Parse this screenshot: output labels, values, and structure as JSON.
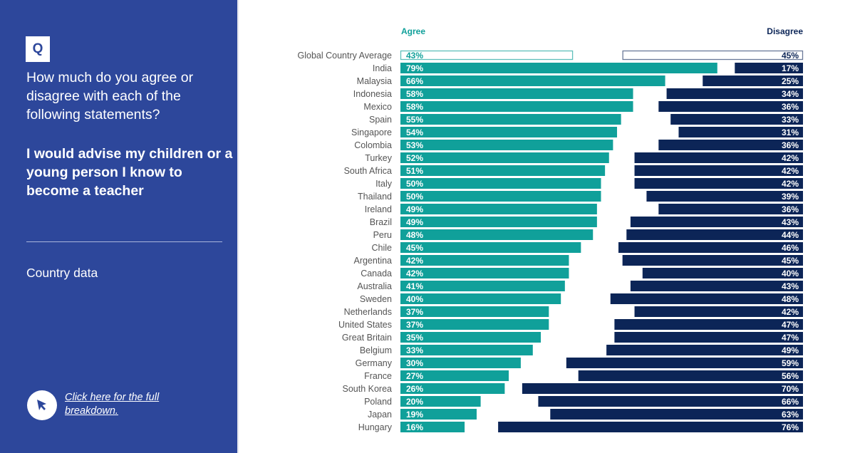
{
  "sidebar": {
    "badge": "Q",
    "question": "How much do you agree or disagree with each of the following statements?",
    "statement": "I would advise my children or a young person I know to become a teacher",
    "section_label": "Country data",
    "link_text": "Click here for the full breakdown."
  },
  "colors": {
    "sidebar_bg": "#2d479b",
    "agree": "#10a09a",
    "disagree": "#0c2557",
    "average_agree_border": "#5fbfbb",
    "average_disagree_border": "#6b7a99"
  },
  "chart_data": {
    "type": "bar",
    "orientation": "horizontal-diverging",
    "title": "I would advise my children or a young person I know to become a teacher",
    "series_labels": {
      "agree": "Agree",
      "disagree": "Disagree"
    },
    "categories": [
      "Global Country Average",
      "India",
      "Malaysia",
      "Indonesia",
      "Mexico",
      "Spain",
      "Singapore",
      "Colombia",
      "Turkey",
      "South Africa",
      "Italy",
      "Thailand",
      "Ireland",
      "Brazil",
      "Peru",
      "Chile",
      "Argentina",
      "Canada",
      "Australia",
      "Sweden",
      "Netherlands",
      "United States",
      "Great Britain",
      "Belgium",
      "Germany",
      "France",
      "South Korea",
      "Poland",
      "Japan",
      "Hungary"
    ],
    "series": [
      {
        "name": "Agree",
        "values": [
          43,
          79,
          66,
          58,
          58,
          55,
          54,
          53,
          52,
          51,
          50,
          50,
          49,
          49,
          48,
          45,
          42,
          42,
          41,
          40,
          37,
          37,
          35,
          33,
          30,
          27,
          26,
          20,
          19,
          16
        ]
      },
      {
        "name": "Disagree",
        "values": [
          45,
          17,
          25,
          34,
          36,
          33,
          31,
          36,
          42,
          42,
          42,
          39,
          36,
          43,
          44,
          46,
          45,
          40,
          43,
          48,
          42,
          47,
          47,
          49,
          59,
          56,
          70,
          66,
          63,
          76
        ]
      }
    ],
    "value_format": "percent",
    "xlim": [
      0,
      100
    ],
    "highlight_row": "Global Country Average"
  }
}
